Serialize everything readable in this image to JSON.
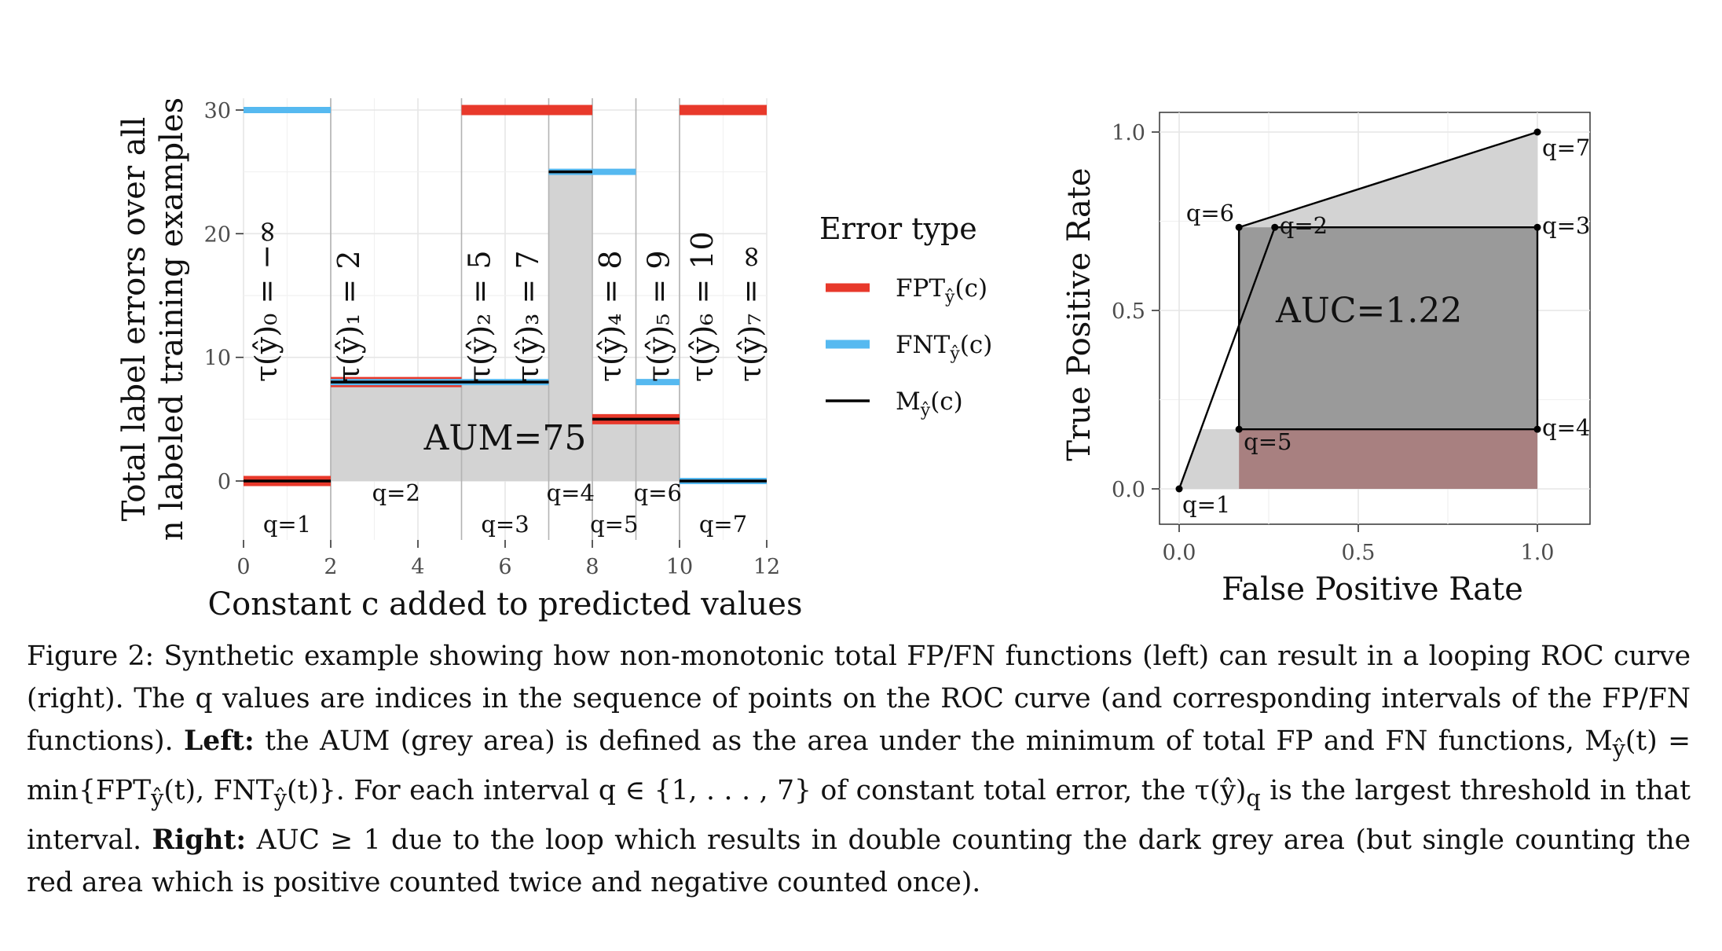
{
  "chart_data": [
    {
      "type": "step",
      "xlabel": "Constant c added to predicted values",
      "ylabel_line1": "Total label errors over all",
      "ylabel_line2": "n labeled training examples",
      "xlim": [
        0,
        12
      ],
      "ylim": [
        0,
        30
      ],
      "xticks": [
        "0",
        "2",
        "4",
        "6",
        "8",
        "10",
        "12"
      ],
      "yticks": [
        "0",
        "10",
        "20",
        "30"
      ],
      "boundaries": [
        2,
        5,
        7,
        8,
        9,
        10
      ],
      "series": [
        {
          "name": "FPT",
          "color": "#e8392b",
          "segments": [
            [
              0,
              2,
              0
            ],
            [
              2,
              5,
              8
            ],
            [
              5,
              7,
              30
            ],
            [
              7,
              8,
              30
            ],
            [
              8,
              9,
              5
            ],
            [
              9,
              10,
              5
            ],
            [
              10,
              12,
              30
            ]
          ]
        },
        {
          "name": "FNT",
          "color": "#56b9f0",
          "segments": [
            [
              0,
              2,
              30
            ],
            [
              2,
              5,
              8
            ],
            [
              5,
              7,
              8
            ],
            [
              7,
              8,
              25
            ],
            [
              8,
              9,
              25
            ],
            [
              9,
              10,
              8
            ],
            [
              10,
              12,
              0
            ]
          ]
        },
        {
          "name": "M",
          "color": "#000000",
          "segments": [
            [
              0,
              2,
              0
            ],
            [
              2,
              5,
              8
            ],
            [
              5,
              7,
              8
            ],
            [
              7,
              8,
              25
            ],
            [
              8,
              9,
              5
            ],
            [
              9,
              10,
              5
            ],
            [
              10,
              12,
              0
            ]
          ]
        }
      ],
      "area_label": "AUM=75",
      "q_labels": [
        {
          "text": "q=1",
          "x": 1,
          "row": 2
        },
        {
          "text": "q=2",
          "x": 3.5,
          "row": 1
        },
        {
          "text": "q=3",
          "x": 6,
          "row": 2
        },
        {
          "text": "q=4",
          "x": 7.5,
          "row": 1
        },
        {
          "text": "q=5",
          "x": 8.5,
          "row": 2
        },
        {
          "text": "q=6",
          "x": 9.5,
          "row": 1
        },
        {
          "text": "q=7",
          "x": 11,
          "row": 2
        }
      ],
      "thresholds": [
        {
          "x": 0.5,
          "label": "τ(ŷ)₀ = −∞"
        },
        {
          "x": 2.4,
          "label": "τ(ŷ)₁ = 2"
        },
        {
          "x": 5.4,
          "label": "τ(ŷ)₂ = 5"
        },
        {
          "x": 6.5,
          "label": "τ(ŷ)₃ = 7"
        },
        {
          "x": 8.4,
          "label": "τ(ŷ)₄ = 8"
        },
        {
          "x": 9.5,
          "label": "τ(ŷ)₅ = 9"
        },
        {
          "x": 10.5,
          "label": "τ(ŷ)₆ = 10"
        },
        {
          "x": 11.6,
          "label": "τ(ŷ)₇ = ∞"
        }
      ]
    },
    {
      "type": "roc",
      "xlabel": "False Positive Rate",
      "ylabel": "True Positive Rate",
      "xlim": [
        0,
        1
      ],
      "ylim": [
        0,
        1
      ],
      "xticks": [
        "0.0",
        "0.5",
        "1.0"
      ],
      "yticks": [
        "0.0",
        "0.5",
        "1.0"
      ],
      "points": [
        {
          "q": "q=1",
          "fpr": 0.0,
          "tpr": 0.0
        },
        {
          "q": "q=2",
          "fpr": 0.267,
          "tpr": 0.733
        },
        {
          "q": "q=3",
          "fpr": 1.0,
          "tpr": 0.733
        },
        {
          "q": "q=4",
          "fpr": 1.0,
          "tpr": 0.167
        },
        {
          "q": "q=5",
          "fpr": 0.167,
          "tpr": 0.167
        },
        {
          "q": "q=6",
          "fpr": 0.167,
          "tpr": 0.733
        },
        {
          "q": "q=7",
          "fpr": 1.0,
          "tpr": 1.0
        }
      ],
      "area_label": "AUC=1.22"
    }
  ],
  "legend": {
    "title": "Error type",
    "items": [
      {
        "key": "FPT",
        "color": "#e8392b",
        "main": "FPT",
        "sub": "ŷ",
        "arg": "(c)"
      },
      {
        "key": "FNT",
        "color": "#56b9f0",
        "main": "FNT",
        "sub": "ŷ",
        "arg": "(c)"
      },
      {
        "key": "M",
        "color": "#000000",
        "main": "M",
        "sub": "ŷ",
        "arg": "(c)"
      }
    ]
  },
  "caption": {
    "line1": "Figure 2: Synthetic example showing how non-monotonic total FP/FN functions (left) can result in a looping ROC curve (right). The q values are indices in the sequence of points on the ROC curve (and corresponding intervals of the FP/FN functions). ",
    "left_label": "Left:",
    "left_text": " the AUM (grey area) is defined as the area under the minimum of total FP and FN functions, M",
    "left_sub": "ŷ",
    "left_text2": "(t) = min{FPT",
    "left_sub2": "ŷ",
    "left_text3": "(t), FNT",
    "left_sub3": "ŷ",
    "left_text4": "(t)}. For each interval q ∈ {1, . . . , 7} of constant total error, the τ(ŷ)",
    "left_sub4": "q",
    "left_text5": " is the largest threshold in that interval. ",
    "right_label": "Right:",
    "right_text": " AUC ≥ 1 due to the loop which results in double counting the dark grey area (but single counting the red area which is positive counted twice and negative counted once)."
  }
}
